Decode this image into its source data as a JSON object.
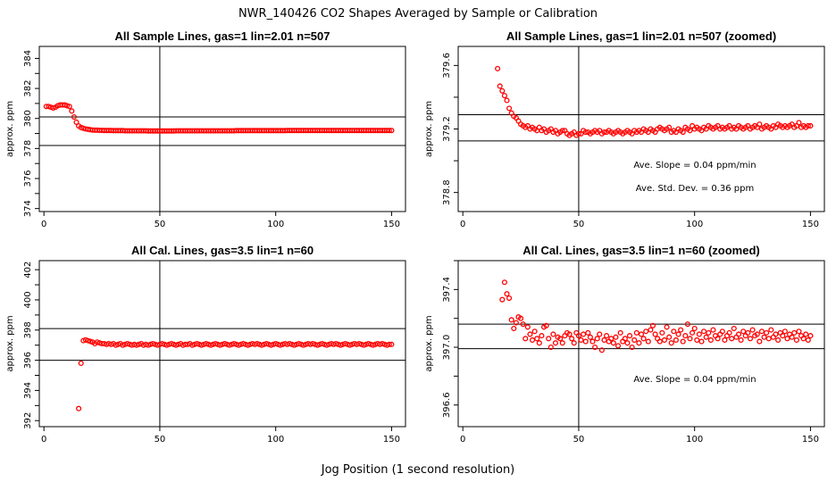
{
  "main_title": "NWR_140426  CO2 Shapes Averaged by Sample or Calibration",
  "x_label": "Jog Position (1 second resolution)",
  "colors": {
    "points": "#ff0000",
    "axes": "#000000"
  },
  "chart_data": [
    {
      "type": "scatter",
      "title": "All Sample Lines, gas=1 lin=2.01 n=507",
      "ylabel": "approx. ppm",
      "xlim": [
        -2,
        156
      ],
      "ylim": [
        373.8,
        384.8
      ],
      "xticks": [
        "0",
        "50",
        "100",
        "150"
      ],
      "yticks": [
        "374",
        "376",
        "378",
        "380",
        "382",
        "384"
      ],
      "vline": 50,
      "hlines": [
        380.1,
        378.2
      ],
      "annotations": [],
      "x": [
        1,
        2,
        3,
        4,
        5,
        6,
        7,
        8,
        9,
        10,
        11,
        12,
        13,
        14,
        15,
        16,
        17,
        18,
        19,
        20,
        21,
        22,
        23,
        24,
        25,
        26,
        27,
        28,
        29,
        30,
        31,
        32,
        33,
        34,
        35,
        36,
        37,
        38,
        39,
        40,
        41,
        42,
        43,
        44,
        45,
        46,
        47,
        48,
        49,
        50,
        51,
        52,
        53,
        54,
        55,
        56,
        57,
        58,
        59,
        60,
        61,
        62,
        63,
        64,
        65,
        66,
        67,
        68,
        69,
        70,
        71,
        72,
        73,
        74,
        75,
        76,
        77,
        78,
        79,
        80,
        81,
        82,
        83,
        84,
        85,
        86,
        87,
        88,
        89,
        90,
        91,
        92,
        93,
        94,
        95,
        96,
        97,
        98,
        99,
        100,
        101,
        102,
        103,
        104,
        105,
        106,
        107,
        108,
        109,
        110,
        111,
        112,
        113,
        114,
        115,
        116,
        117,
        118,
        119,
        120,
        121,
        122,
        123,
        124,
        125,
        126,
        127,
        128,
        129,
        130,
        131,
        132,
        133,
        134,
        135,
        136,
        137,
        138,
        139,
        140,
        141,
        142,
        143,
        144,
        145,
        146,
        147,
        148,
        149,
        150
      ],
      "y": [
        380.8,
        380.8,
        380.75,
        380.7,
        380.75,
        380.85,
        380.9,
        380.9,
        380.9,
        380.85,
        380.8,
        380.5,
        380.1,
        379.75,
        379.5,
        379.4,
        379.35,
        379.3,
        379.28,
        379.25,
        379.23,
        379.22,
        379.22,
        379.21,
        379.21,
        379.2,
        379.2,
        379.2,
        379.2,
        379.19,
        379.19,
        379.19,
        379.19,
        379.19,
        379.18,
        379.18,
        379.18,
        379.18,
        379.18,
        379.18,
        379.18,
        379.18,
        379.18,
        379.18,
        379.17,
        379.17,
        379.17,
        379.17,
        379.17,
        379.17,
        379.17,
        379.17,
        379.17,
        379.17,
        379.17,
        379.17,
        379.18,
        379.18,
        379.18,
        379.18,
        379.18,
        379.18,
        379.18,
        379.18,
        379.18,
        379.18,
        379.18,
        379.18,
        379.18,
        379.18,
        379.18,
        379.18,
        379.18,
        379.18,
        379.18,
        379.18,
        379.18,
        379.18,
        379.18,
        379.18,
        379.18,
        379.18,
        379.19,
        379.19,
        379.19,
        379.19,
        379.19,
        379.19,
        379.19,
        379.19,
        379.19,
        379.19,
        379.19,
        379.19,
        379.19,
        379.19,
        379.19,
        379.19,
        379.19,
        379.19,
        379.19,
        379.19,
        379.19,
        379.19,
        379.2,
        379.2,
        379.2,
        379.2,
        379.2,
        379.2,
        379.2,
        379.2,
        379.2,
        379.2,
        379.2,
        379.2,
        379.2,
        379.2,
        379.2,
        379.2,
        379.2,
        379.2,
        379.2,
        379.2,
        379.2,
        379.2,
        379.2,
        379.2,
        379.2,
        379.2,
        379.2,
        379.2,
        379.2,
        379.2,
        379.2,
        379.2,
        379.2,
        379.2,
        379.2,
        379.2,
        379.2,
        379.2,
        379.2,
        379.2,
        379.2,
        379.2,
        379.2,
        379.2,
        379.2,
        379.2
      ]
    },
    {
      "type": "scatter",
      "title": "All Sample Lines, gas=1 lin=2.01 n=507 (zoomed)",
      "ylabel": "approx. ppm",
      "xlim": [
        -2,
        156
      ],
      "ylim": [
        378.68,
        379.72
      ],
      "xticks": [
        "0",
        "50",
        "100",
        "150"
      ],
      "yticks": [
        "378.8",
        "379.2",
        "379.6"
      ],
      "vline": 50,
      "hlines": [
        379.29,
        379.125
      ],
      "annotations": [
        "Ave. Slope =  0.04  ppm/min",
        "Ave. Std. Dev. =  0.36  ppm"
      ],
      "x": [
        15,
        16,
        17,
        18,
        19,
        20,
        21,
        22,
        23,
        24,
        25,
        26,
        27,
        28,
        29,
        30,
        31,
        32,
        33,
        34,
        35,
        36,
        37,
        38,
        39,
        40,
        41,
        42,
        43,
        44,
        45,
        46,
        47,
        48,
        49,
        50,
        51,
        52,
        53,
        54,
        55,
        56,
        57,
        58,
        59,
        60,
        61,
        62,
        63,
        64,
        65,
        66,
        67,
        68,
        69,
        70,
        71,
        72,
        73,
        74,
        75,
        76,
        77,
        78,
        79,
        80,
        81,
        82,
        83,
        84,
        85,
        86,
        87,
        88,
        89,
        90,
        91,
        92,
        93,
        94,
        95,
        96,
        97,
        98,
        99,
        100,
        101,
        102,
        103,
        104,
        105,
        106,
        107,
        108,
        109,
        110,
        111,
        112,
        113,
        114,
        115,
        116,
        117,
        118,
        119,
        120,
        121,
        122,
        123,
        124,
        125,
        126,
        127,
        128,
        129,
        130,
        131,
        132,
        133,
        134,
        135,
        136,
        137,
        138,
        139,
        140,
        141,
        142,
        143,
        144,
        145,
        146,
        147,
        148,
        149,
        150
      ],
      "y": [
        379.58,
        379.47,
        379.44,
        379.41,
        379.38,
        379.33,
        379.3,
        379.28,
        379.27,
        379.25,
        379.23,
        379.22,
        379.21,
        379.22,
        379.2,
        379.21,
        379.2,
        379.19,
        379.21,
        379.19,
        379.2,
        379.18,
        379.19,
        379.2,
        379.18,
        379.19,
        379.17,
        379.18,
        379.19,
        379.19,
        379.17,
        379.16,
        379.17,
        379.18,
        379.16,
        379.17,
        379.17,
        379.19,
        379.18,
        379.18,
        379.17,
        379.18,
        379.19,
        379.18,
        379.19,
        379.17,
        379.18,
        379.18,
        379.19,
        379.18,
        379.17,
        379.18,
        379.19,
        379.18,
        379.17,
        379.18,
        379.19,
        379.18,
        379.17,
        379.19,
        379.18,
        379.19,
        379.18,
        379.2,
        379.19,
        379.18,
        379.2,
        379.19,
        379.18,
        379.2,
        379.21,
        379.2,
        379.19,
        379.2,
        379.21,
        379.18,
        379.19,
        379.18,
        379.2,
        379.19,
        379.18,
        379.21,
        379.2,
        379.19,
        379.22,
        379.2,
        379.21,
        379.2,
        379.19,
        379.21,
        379.2,
        379.22,
        379.21,
        379.2,
        379.21,
        379.22,
        379.2,
        379.21,
        379.2,
        379.21,
        379.22,
        379.2,
        379.21,
        379.2,
        379.22,
        379.21,
        379.2,
        379.21,
        379.22,
        379.2,
        379.21,
        379.22,
        379.21,
        379.23,
        379.2,
        379.21,
        379.22,
        379.21,
        379.2,
        379.22,
        379.21,
        379.23,
        379.22,
        379.21,
        379.22,
        379.21,
        379.22,
        379.23,
        379.21,
        379.22,
        379.24,
        379.21,
        379.22,
        379.21,
        379.22,
        379.22
      ]
    },
    {
      "type": "scatter",
      "title": "All Cal. Lines, gas=3.5 lin=1 n=60",
      "ylabel": "approx. ppm",
      "xlim": [
        -2,
        156
      ],
      "ylim": [
        391.6,
        402.6
      ],
      "xticks": [
        "0",
        "50",
        "100",
        "150"
      ],
      "yticks": [
        "392",
        "394",
        "396",
        "398",
        "400",
        "402"
      ],
      "vline": 50,
      "hlines": [
        398.1,
        396.0
      ],
      "annotations": [],
      "x": [
        15,
        16,
        17,
        18,
        19,
        20,
        21,
        22,
        23,
        24,
        25,
        26,
        27,
        28,
        29,
        30,
        31,
        32,
        33,
        34,
        35,
        36,
        37,
        38,
        39,
        40,
        41,
        42,
        43,
        44,
        45,
        46,
        47,
        48,
        49,
        50,
        51,
        52,
        53,
        54,
        55,
        56,
        57,
        58,
        59,
        60,
        61,
        62,
        63,
        64,
        65,
        66,
        67,
        68,
        69,
        70,
        71,
        72,
        73,
        74,
        75,
        76,
        77,
        78,
        79,
        80,
        81,
        82,
        83,
        84,
        85,
        86,
        87,
        88,
        89,
        90,
        91,
        92,
        93,
        94,
        95,
        96,
        97,
        98,
        99,
        100,
        101,
        102,
        103,
        104,
        105,
        106,
        107,
        108,
        109,
        110,
        111,
        112,
        113,
        114,
        115,
        116,
        117,
        118,
        119,
        120,
        121,
        122,
        123,
        124,
        125,
        126,
        127,
        128,
        129,
        130,
        131,
        132,
        133,
        134,
        135,
        136,
        137,
        138,
        139,
        140,
        141,
        142,
        143,
        144,
        145,
        146,
        147,
        148,
        149,
        150
      ],
      "y": [
        392.8,
        395.8,
        397.3,
        397.35,
        397.3,
        397.25,
        397.2,
        397.1,
        397.2,
        397.15,
        397.1,
        397.1,
        397.05,
        397.1,
        397.05,
        397.1,
        397.0,
        397.05,
        397.1,
        397.0,
        397.05,
        397.1,
        397.05,
        397.0,
        397.05,
        397.0,
        397.05,
        397.1,
        397.0,
        397.05,
        397.0,
        397.05,
        397.1,
        397.05,
        397.0,
        397.05,
        397.1,
        397.05,
        397.0,
        397.05,
        397.1,
        397.05,
        397.0,
        397.05,
        397.1,
        397.0,
        397.05,
        397.05,
        397.1,
        397.0,
        397.05,
        397.1,
        397.05,
        397.0,
        397.05,
        397.1,
        397.05,
        397.0,
        397.05,
        397.1,
        397.05,
        397.0,
        397.05,
        397.1,
        397.05,
        397.0,
        397.05,
        397.1,
        397.05,
        397.0,
        397.05,
        397.1,
        397.05,
        397.0,
        397.05,
        397.1,
        397.05,
        397.1,
        397.05,
        397.0,
        397.05,
        397.1,
        397.05,
        397.0,
        397.05,
        397.1,
        397.05,
        397.0,
        397.05,
        397.1,
        397.05,
        397.1,
        397.05,
        397.0,
        397.05,
        397.1,
        397.05,
        397.0,
        397.05,
        397.1,
        397.05,
        397.1,
        397.05,
        397.0,
        397.05,
        397.1,
        397.05,
        397.0,
        397.05,
        397.1,
        397.05,
        397.1,
        397.05,
        397.0,
        397.05,
        397.1,
        397.05,
        397.0,
        397.05,
        397.1,
        397.05,
        397.1,
        397.05,
        397.0,
        397.05,
        397.1,
        397.05,
        397.0,
        397.05,
        397.1,
        397.05,
        397.1,
        397.05,
        397.0,
        397.05,
        397.05
      ]
    },
    {
      "type": "scatter",
      "title": "All Cal. Lines, gas=3.5 lin=1 n=60 (zoomed)",
      "ylabel": "approx. ppm",
      "xlim": [
        -2,
        156
      ],
      "ylim": [
        396.45,
        397.6
      ],
      "xticks": [
        "0",
        "50",
        "100",
        "150"
      ],
      "yticks": [
        "396.6",
        "397.0",
        "397.4"
      ],
      "vline": 50,
      "hlines": [
        397.16,
        396.99
      ],
      "annotations": [
        "Ave. Slope =  0.04  ppm/min"
      ],
      "x": [
        17,
        18,
        19,
        20,
        21,
        22,
        23,
        24,
        25,
        26,
        27,
        28,
        29,
        30,
        31,
        32,
        33,
        34,
        35,
        36,
        37,
        38,
        39,
        40,
        41,
        42,
        43,
        44,
        45,
        46,
        47,
        48,
        49,
        50,
        51,
        52,
        53,
        54,
        55,
        56,
        57,
        58,
        59,
        60,
        61,
        62,
        63,
        64,
        65,
        66,
        67,
        68,
        69,
        70,
        71,
        72,
        73,
        74,
        75,
        76,
        77,
        78,
        79,
        80,
        81,
        82,
        83,
        84,
        85,
        86,
        87,
        88,
        89,
        90,
        91,
        92,
        93,
        94,
        95,
        96,
        97,
        98,
        99,
        100,
        101,
        102,
        103,
        104,
        105,
        106,
        107,
        108,
        109,
        110,
        111,
        112,
        113,
        114,
        115,
        116,
        117,
        118,
        119,
        120,
        121,
        122,
        123,
        124,
        125,
        126,
        127,
        128,
        129,
        130,
        131,
        132,
        133,
        134,
        135,
        136,
        137,
        138,
        139,
        140,
        141,
        142,
        143,
        144,
        145,
        146,
        147,
        148,
        149,
        150
      ],
      "y": [
        397.33,
        397.45,
        397.37,
        397.34,
        397.19,
        397.13,
        397.17,
        397.21,
        397.2,
        397.16,
        397.06,
        397.14,
        397.09,
        397.05,
        397.11,
        397.06,
        397.03,
        397.08,
        397.14,
        397.15,
        397.06,
        397.0,
        397.09,
        397.03,
        397.07,
        397.06,
        397.03,
        397.08,
        397.1,
        397.09,
        397.06,
        397.03,
        397.1,
        397.08,
        397.05,
        397.09,
        397.04,
        397.1,
        397.07,
        397.04,
        397.0,
        397.06,
        397.09,
        396.98,
        397.05,
        397.08,
        397.04,
        397.06,
        397.03,
        397.07,
        397.01,
        397.1,
        397.04,
        397.06,
        397.03,
        397.08,
        397.0,
        397.05,
        397.1,
        397.03,
        397.09,
        397.06,
        397.11,
        397.04,
        397.12,
        397.15,
        397.09,
        397.06,
        397.04,
        397.1,
        397.05,
        397.14,
        397.07,
        397.03,
        397.11,
        397.05,
        397.09,
        397.12,
        397.04,
        397.08,
        397.16,
        397.06,
        397.1,
        397.13,
        397.05,
        397.09,
        397.04,
        397.11,
        397.07,
        397.1,
        397.05,
        397.12,
        397.08,
        397.06,
        397.09,
        397.11,
        397.05,
        397.08,
        397.1,
        397.06,
        397.13,
        397.07,
        397.09,
        397.05,
        397.11,
        397.08,
        397.1,
        397.06,
        397.12,
        397.08,
        397.09,
        397.04,
        397.11,
        397.07,
        397.1,
        397.06,
        397.12,
        397.07,
        397.09,
        397.05,
        397.1,
        397.08,
        397.11,
        397.06,
        397.09,
        397.07,
        397.1,
        397.05,
        397.11,
        397.08,
        397.06,
        397.09,
        397.05,
        397.08
      ]
    }
  ]
}
